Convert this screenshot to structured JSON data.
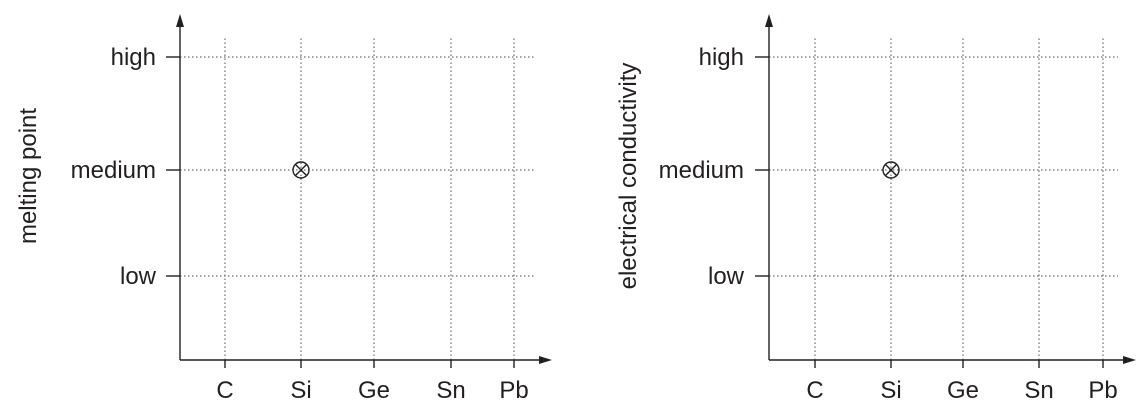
{
  "chart_data": [
    {
      "type": "scatter",
      "title": "",
      "xlabel": "",
      "ylabel": "melting point",
      "categories": [
        "C",
        "Si",
        "Ge",
        "Sn",
        "Pb"
      ],
      "y_levels": [
        "low",
        "medium",
        "high"
      ],
      "grid": true,
      "grid_style": "dotted",
      "marker": "circled-cross",
      "points": [
        {
          "x": "Si",
          "y": "medium"
        }
      ]
    },
    {
      "type": "scatter",
      "title": "",
      "xlabel": "",
      "ylabel": "electrical conductivity",
      "categories": [
        "C",
        "Si",
        "Ge",
        "Sn",
        "Pb"
      ],
      "y_levels": [
        "low",
        "medium",
        "high"
      ],
      "grid": true,
      "grid_style": "dotted",
      "marker": "circled-cross",
      "points": [
        {
          "x": "Si",
          "y": "medium"
        }
      ]
    }
  ],
  "colors": {
    "ink": "#231f20",
    "grid": "#6d6e71"
  }
}
